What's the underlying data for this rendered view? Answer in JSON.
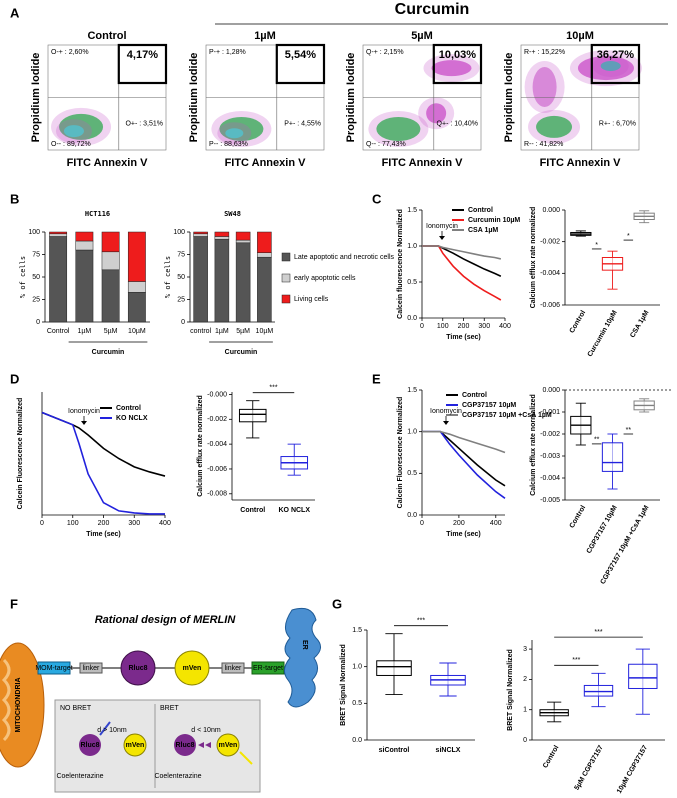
{
  "panel_A": {
    "letter": "A",
    "group_label": "Curcumin",
    "x_label": "FITC Annexin V",
    "y_label": "Propidium Iodide",
    "plots": [
      {
        "title": "Control",
        "upper_right": "4,17%",
        "upper_left": "O-+ : 2,60%",
        "lower_right": "O+- : 3,51%",
        "lower_left": "O-- : 89,72%"
      },
      {
        "title": "1µM",
        "upper_right": "5,54%",
        "upper_left": "P-+ : 1,28%",
        "lower_right": "P+- : 4,55%",
        "lower_left": "P-- : 88,63%"
      },
      {
        "title": "5µM",
        "upper_right": "10,03%",
        "upper_left": "Q-+ : 2,15%",
        "lower_right": "Q+- : 10,40%",
        "lower_left": "Q-- : 77,43%"
      },
      {
        "title": "10µM",
        "upper_right": "36,27%",
        "upper_left": "R-+ : 15,22%",
        "lower_right": "R+- : 6,70%",
        "lower_left": "R-- : 41,82%"
      }
    ]
  },
  "panel_B": {
    "letter": "B",
    "y_label": "% of cells",
    "group_label": "Curcumin",
    "ylim": [
      0,
      100
    ],
    "yticks": [
      0,
      25,
      50,
      75,
      100
    ],
    "legend": [
      {
        "name": "Late apoptotic and necrotic cells",
        "color": "#555555"
      },
      {
        "name": "early apoptotic cells",
        "color": "#cfcfcf"
      },
      {
        "name": "Living cells",
        "color": "#ee1c1c"
      }
    ],
    "charts": [
      {
        "title": "HCT116",
        "categories": [
          "Control",
          "1µM",
          "5µM",
          "10µM"
        ],
        "stacks": [
          {
            "values": [
              95,
              80,
              58,
              33
            ]
          },
          {
            "values": [
              3,
              10,
              20,
              12
            ]
          },
          {
            "values": [
              2,
              10,
              22,
              55
            ]
          }
        ]
      },
      {
        "title": "SW48",
        "categories": [
          "control",
          "1µM",
          "5µM",
          "10µM"
        ],
        "stacks": [
          {
            "values": [
              95,
              92,
              88,
              72
            ]
          },
          {
            "values": [
              3,
              3,
              3,
              5
            ]
          },
          {
            "values": [
              2,
              5,
              9,
              23
            ]
          }
        ]
      }
    ]
  },
  "panel_C": {
    "letter": "C",
    "line": {
      "y_label": "Calcein fluorescence Normalized",
      "x_label": "Time (sec)",
      "annotation": "Ionomycin",
      "xlim": [
        0,
        400
      ],
      "xticks": [
        0,
        100,
        200,
        300,
        400
      ],
      "ylim": [
        0,
        1.5
      ],
      "yticks": [
        {
          "value": 0,
          "label": "0.0"
        },
        0.5,
        {
          "value": 1,
          "label": "1.0"
        },
        1.5
      ],
      "series": [
        {
          "name": "Control",
          "color": "#000000",
          "x": [
            0,
            80,
            100,
            150,
            200,
            250,
            300,
            350,
            380
          ],
          "values": [
            1,
            1,
            0.97,
            0.9,
            0.82,
            0.75,
            0.68,
            0.62,
            0.58
          ]
        },
        {
          "name": "Curcumin 10µM",
          "color": "#ee1c1c",
          "x": [
            0,
            80,
            100,
            150,
            200,
            250,
            300,
            350,
            380
          ],
          "values": [
            1,
            1,
            0.9,
            0.72,
            0.58,
            0.47,
            0.38,
            0.3,
            0.25
          ]
        },
        {
          "name": "CSA 1µM",
          "color": "#808080",
          "x": [
            0,
            80,
            100,
            150,
            200,
            250,
            300,
            350,
            380
          ],
          "values": [
            1,
            1,
            0.98,
            0.95,
            0.92,
            0.89,
            0.86,
            0.84,
            0.82
          ]
        }
      ]
    },
    "box": {
      "y_label": "Calcium efflux rate normalized",
      "ylim": [
        -0.006,
        0
      ],
      "yticks": [
        -0.006,
        -0.004,
        -0.002,
        {
          "value": 0,
          "label": "0.000"
        }
      ],
      "categories": [
        "Control",
        "Curcumin 10µM",
        "CSA 1µM"
      ],
      "boxes": [
        {
          "color": "#000000",
          "min": -0.00165,
          "q1": -0.0016,
          "median": -0.00152,
          "q3": -0.00142,
          "max": -0.00132
        },
        {
          "color": "#ee1c1c",
          "min": -0.005,
          "q1": -0.0038,
          "median": -0.0034,
          "q3": -0.003,
          "max": -0.0026
        },
        {
          "color": "#808080",
          "min": -0.0008,
          "q1": -0.0006,
          "median": -0.0004,
          "q3": -0.0002,
          "max": -5e-05
        }
      ],
      "significance": [
        "*",
        "*"
      ]
    }
  },
  "panel_D": {
    "letter": "D",
    "line": {
      "y_label": "Calcein Fluorescence Normalized",
      "x_label": "Time (sec)",
      "annotation": "Ionomycin",
      "xlim": [
        0,
        400
      ],
      "xticks": [
        0,
        100,
        200,
        300,
        400
      ],
      "ylim": [
        0,
        1.2
      ],
      "series": [
        {
          "name": "Control",
          "color": "#000000",
          "x": [
            0,
            100,
            120,
            150,
            200,
            250,
            300,
            350,
            400
          ],
          "values": [
            1,
            0.88,
            0.85,
            0.78,
            0.65,
            0.55,
            0.47,
            0.42,
            0.38
          ]
        },
        {
          "name": "KO NCLX",
          "color": "#2222dd",
          "x": [
            0,
            100,
            120,
            150,
            200,
            250,
            300,
            350,
            400
          ],
          "values": [
            1,
            0.88,
            0.7,
            0.4,
            0.12,
            0.04,
            0.02,
            0.01,
            0.01
          ]
        }
      ]
    },
    "box": {
      "y_label": "Calcium efflux rate normalized",
      "ylim": [
        -0.0085,
        0.0002
      ],
      "yticks": [
        -0.008,
        -0.006,
        -0.004,
        -0.002,
        {
          "value": 0,
          "label": "-0.000"
        }
      ],
      "categories": [
        "Control",
        "KO NCLX"
      ],
      "boxes": [
        {
          "color": "#000000",
          "min": -0.0035,
          "q1": -0.0022,
          "median": -0.0016,
          "q3": -0.0012,
          "max": -0.0005
        },
        {
          "color": "#2222dd",
          "min": -0.0065,
          "q1": -0.006,
          "median": -0.0055,
          "q3": -0.005,
          "max": -0.004
        }
      ],
      "significance": [
        "***"
      ]
    }
  },
  "panel_E": {
    "letter": "E",
    "line": {
      "y_label": "Calcein Fluorescence Normalized",
      "x_label": "Time (sec)",
      "annotation": "Ionomycin",
      "xlim": [
        0,
        450
      ],
      "xticks": [
        0,
        200,
        400
      ],
      "ylim": [
        0,
        1.5
      ],
      "yticks": [
        {
          "value": 0,
          "label": "0.0"
        },
        0.5,
        {
          "value": 1,
          "label": "1.0"
        },
        1.5
      ],
      "series": [
        {
          "name": "Control",
          "color": "#000000",
          "x": [
            0,
            100,
            150,
            200,
            300,
            400,
            450
          ],
          "values": [
            1,
            1,
            0.9,
            0.8,
            0.6,
            0.42,
            0.35
          ]
        },
        {
          "name": "CGP37157 10µM",
          "color": "#2222dd",
          "x": [
            0,
            100,
            150,
            200,
            300,
            400,
            450
          ],
          "values": [
            1,
            1,
            0.85,
            0.72,
            0.48,
            0.28,
            0.2
          ]
        },
        {
          "name": "CGP37157 10µM +CsA 1µM",
          "color": "#808080",
          "x": [
            0,
            100,
            150,
            200,
            300,
            400,
            450
          ],
          "values": [
            1,
            1,
            0.97,
            0.93,
            0.86,
            0.79,
            0.75
          ]
        }
      ]
    },
    "box": {
      "y_label": "Calcium efflux rate normalized",
      "ylim": [
        -0.005,
        0
      ],
      "yticks": [
        -0.005,
        -0.004,
        -0.003,
        -0.002,
        -0.001,
        {
          "value": 0,
          "label": "0.000"
        }
      ],
      "categories": [
        "Control",
        "CGP37157 10µM",
        "CGP37157 10µM +CsA 1µM"
      ],
      "boxes": [
        {
          "color": "#000000",
          "min": -0.0025,
          "q1": -0.002,
          "median": -0.0016,
          "q3": -0.0012,
          "max": -0.0006
        },
        {
          "color": "#2222dd",
          "min": -0.0045,
          "q1": -0.0037,
          "median": -0.0033,
          "q3": -0.0024,
          "max": -0.002
        },
        {
          "color": "#808080",
          "min": -0.001,
          "q1": -0.0009,
          "median": -0.0007,
          "q3": -0.0005,
          "max": -0.0004
        }
      ],
      "significance": [
        "**",
        "**"
      ]
    }
  },
  "panel_F": {
    "letter": "F",
    "title": "Rational design of MERLIN",
    "mitochondria": "MITOCHONDRIA",
    "er": "ER",
    "construct": [
      "MOM-target",
      "linker",
      "Rluc8",
      "mVen",
      "linker",
      "ER-target"
    ],
    "inset": {
      "no_bret": "NO BRET",
      "bret": "BRET",
      "far": "d > 10nm",
      "near": "d < 10nm",
      "donor": "Rluc8",
      "acceptor": "mVen",
      "substrate": "Coelenterazine"
    }
  },
  "panel_G": {
    "letter": "G",
    "boxes_left": {
      "y_label": "BRET Signal Normalized",
      "ylim": [
        0,
        1.5
      ],
      "yticks": [
        {
          "value": 0,
          "label": "0.0"
        },
        0.5,
        {
          "value": 1,
          "label": "1.0"
        },
        1.5
      ],
      "categories": [
        "siControl",
        "siNCLX"
      ],
      "boxes": [
        {
          "color": "#000000",
          "min": 0.62,
          "q1": 0.88,
          "median": 1.0,
          "q3": 1.08,
          "max": 1.45
        },
        {
          "color": "#2222dd",
          "min": 0.6,
          "q1": 0.75,
          "median": 0.82,
          "q3": 0.88,
          "max": 1.05
        }
      ],
      "significance": [
        "***"
      ]
    },
    "boxes_right": {
      "y_label": "BRET Signal Normalized",
      "ylim": [
        0,
        3.3
      ],
      "yticks": [
        0,
        1,
        2,
        3
      ],
      "categories": [
        "Control",
        "5µM CGP37157",
        "10µM CGP37157"
      ],
      "boxes": [
        {
          "color": "#000000",
          "min": 0.6,
          "q1": 0.8,
          "median": 0.9,
          "q3": 1.0,
          "max": 1.25
        },
        {
          "color": "#2222dd",
          "min": 1.1,
          "q1": 1.45,
          "median": 1.6,
          "q3": 1.8,
          "max": 2.2
        },
        {
          "color": "#2222dd",
          "min": 0.85,
          "q1": 1.7,
          "median": 2.05,
          "q3": 2.5,
          "max": 3.0
        }
      ],
      "significance": [
        "***",
        "***"
      ]
    }
  }
}
